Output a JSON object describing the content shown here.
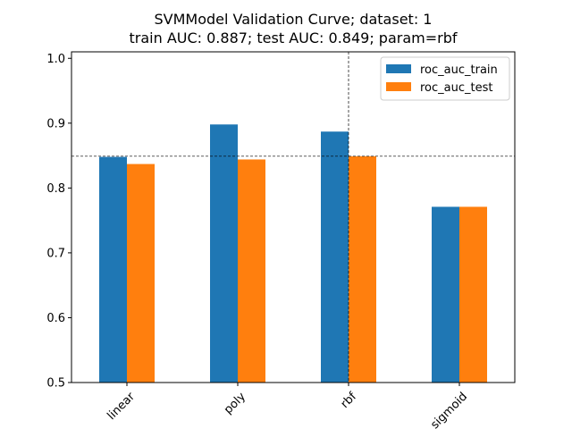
{
  "chart_data": {
    "type": "bar",
    "title_line1": "SVMModel Validation Curve; dataset: 1",
    "title_line2": "train AUC: 0.887; test AUC: 0.849; param=rbf",
    "xlabel": "",
    "ylabel": "",
    "categories": [
      "linear",
      "poly",
      "rbf",
      "sigmoid"
    ],
    "series": [
      {
        "name": "roc_auc_train",
        "color": "#1f77b4",
        "values": [
          0.848,
          0.898,
          0.887,
          0.771
        ]
      },
      {
        "name": "roc_auc_test",
        "color": "#ff7f0e",
        "values": [
          0.837,
          0.844,
          0.849,
          0.771
        ]
      }
    ],
    "ylim": [
      0.5,
      1.01
    ],
    "yticks": [
      "0.5",
      "0.6",
      "0.7",
      "0.8",
      "0.9",
      "1.0"
    ],
    "reference_lines": {
      "horizontal_y": 0.849,
      "vertical_category": "rbf",
      "style": "dashed"
    },
    "grid": false,
    "legend_position": "top-right"
  }
}
